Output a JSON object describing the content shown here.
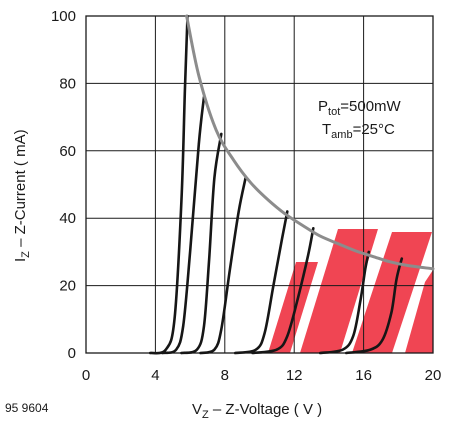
{
  "chart_data": {
    "type": "line",
    "title": "",
    "xlabel": {
      "sym": "V",
      "sub": "Z",
      "rest": " – Z-Voltage ( V )"
    },
    "ylabel": {
      "sym": "I",
      "sub": "Z",
      "rest": " – Z-Current ( mA)"
    },
    "xlim": [
      0,
      20
    ],
    "ylim": [
      0,
      100
    ],
    "xticks": [
      "0",
      "4",
      "8",
      "12",
      "16",
      "20"
    ],
    "yticks": [
      "0",
      "20",
      "40",
      "60",
      "80",
      "100"
    ],
    "grid": true,
    "annotations": {
      "ptot": {
        "sym": "P",
        "sub": "tot",
        "rest": "=500mW"
      },
      "tamb": {
        "sym": "T",
        "sub": "amb",
        "rest": "=25°C"
      }
    },
    "figure_id": "95 9604",
    "power_limit_curve": {
      "color": "#8c8c8c",
      "x": [
        5.8,
        6.5,
        7.5,
        8.5,
        9.5,
        10.5,
        11.5,
        12.5,
        13.5,
        14.5,
        15.5,
        16.5,
        17.5,
        18.5,
        20
      ],
      "y": [
        100,
        82.3,
        66.2,
        57.3,
        50.5,
        45.4,
        41.2,
        37.8,
        34.7,
        32.5,
        30.4,
        28.7,
        27.1,
        26.0,
        25
      ]
    },
    "series": [
      {
        "x": [
          3.7,
          4.6,
          5.1,
          5.5,
          5.7,
          5.85
        ],
        "y": [
          0,
          1,
          10,
          45,
          78,
          100
        ]
      },
      {
        "x": [
          4.4,
          5.2,
          5.6,
          6.0,
          6.5,
          6.8
        ],
        "y": [
          0,
          1,
          8,
          30,
          62,
          76
        ]
      },
      {
        "x": [
          5.5,
          6.4,
          6.8,
          7.1,
          7.4,
          7.8
        ],
        "y": [
          0,
          1,
          8,
          28,
          52,
          65
        ]
      },
      {
        "x": [
          6.6,
          7.4,
          7.8,
          8.3,
          8.8,
          9.2
        ],
        "y": [
          0,
          1,
          7,
          25,
          42,
          52
        ]
      },
      {
        "x": [
          8.6,
          9.8,
          10.3,
          10.8,
          11.3,
          11.6
        ],
        "y": [
          0,
          1,
          6,
          20,
          34,
          42
        ]
      },
      {
        "x": [
          9.6,
          11.0,
          11.6,
          12.2,
          12.8,
          13.1
        ],
        "y": [
          0,
          1,
          5,
          16,
          29,
          37
        ]
      },
      {
        "x": [
          13.5,
          14.8,
          15.4,
          15.8,
          16.1,
          16.3
        ],
        "y": [
          0,
          1,
          5,
          15,
          25,
          30
        ]
      },
      {
        "x": [
          15.0,
          16.4,
          17.1,
          17.6,
          17.9,
          18.2
        ],
        "y": [
          0,
          1,
          4,
          12,
          22,
          28
        ]
      }
    ]
  },
  "watermark": {
    "color": "#ee2b3b"
  }
}
